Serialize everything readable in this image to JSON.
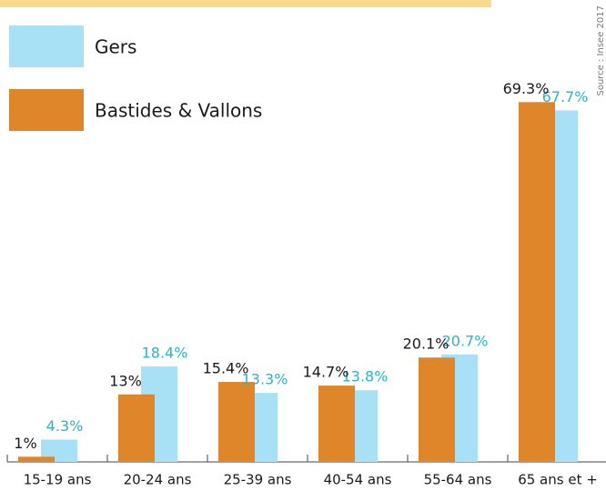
{
  "chart_data": {
    "type": "bar",
    "categories": [
      "15-19 ans",
      "20-24 ans",
      "25-39 ans",
      "40-54 ans",
      "55-64 ans",
      "65 ans et +"
    ],
    "series": [
      {
        "name": "Gers",
        "color": "#a8e0f5",
        "label_color": "#2ab5c5",
        "values": [
          4.3,
          18.4,
          13.3,
          13.8,
          20.7,
          67.7
        ],
        "value_labels": [
          "4.3%",
          "18.4%",
          "13.3%",
          "13.8%",
          "20.7%",
          "67.7%"
        ]
      },
      {
        "name": "Bastides & Vallons",
        "color": "#e0862a",
        "label_color": "#1a1a1a",
        "values": [
          1,
          13,
          15.4,
          14.7,
          20.1,
          69.3
        ],
        "value_labels": [
          "1%",
          "13%",
          "15.4%",
          "14.7%",
          "20.1%",
          "69.3%"
        ]
      }
    ],
    "source": "Source : Insee 2017"
  }
}
